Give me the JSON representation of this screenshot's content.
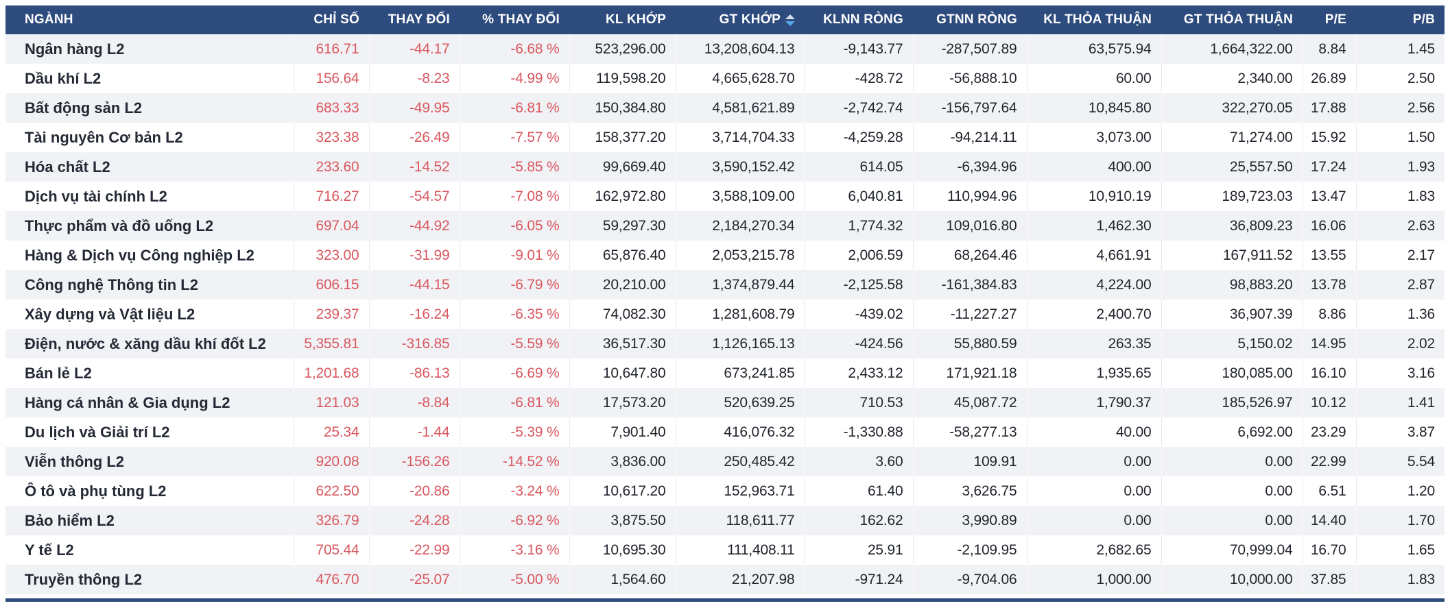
{
  "colors": {
    "header_bg": "#2e4b7e",
    "header_text": "#ffffff",
    "row_stripe": "#f1f2f5",
    "negative_text": "#d9575f",
    "body_text": "#1f232b",
    "sort_arrow_active": "#58a6e8",
    "sort_arrow_inactive": "#d4ddeb"
  },
  "sort": {
    "column_key": "gt-khop",
    "direction": "desc"
  },
  "table": {
    "columns": [
      {
        "key": "nganh",
        "label": "NGÀNH",
        "align": "left",
        "negative_color": false
      },
      {
        "key": "chi-so",
        "label": "CHỈ SỐ",
        "align": "right",
        "negative_color": true
      },
      {
        "key": "thay-doi",
        "label": "THAY ĐỔI",
        "align": "right",
        "negative_color": true
      },
      {
        "key": "pct-thay-doi",
        "label": "% THAY ĐỔI",
        "align": "right",
        "negative_color": true
      },
      {
        "key": "kl-khop",
        "label": "KL KHỚP",
        "align": "right",
        "negative_color": false
      },
      {
        "key": "gt-khop",
        "label": "GT KHỚP",
        "align": "right",
        "negative_color": false,
        "sorted": true
      },
      {
        "key": "klnn-rong",
        "label": "KLNN RÒNG",
        "align": "right",
        "negative_color": false
      },
      {
        "key": "gtnn-rong",
        "label": "GTNN RÒNG",
        "align": "right",
        "negative_color": false
      },
      {
        "key": "kl-thoa-thuan",
        "label": "KL THỎA THUẬN",
        "align": "right",
        "negative_color": false
      },
      {
        "key": "gt-thoa-thuan",
        "label": "GT THỎA THUẬN",
        "align": "right",
        "negative_color": false
      },
      {
        "key": "pe",
        "label": "P/E",
        "align": "right",
        "negative_color": false
      },
      {
        "key": "pb",
        "label": "P/B",
        "align": "right",
        "negative_color": false
      }
    ],
    "rows": [
      [
        "Ngân hàng L2",
        "616.71",
        "-44.17",
        "-6.68 %",
        "523,296.00",
        "13,208,604.13",
        "-9,143.77",
        "-287,507.89",
        "63,575.94",
        "1,664,322.00",
        "8.84",
        "1.45"
      ],
      [
        "Dầu khí L2",
        "156.64",
        "-8.23",
        "-4.99 %",
        "119,598.20",
        "4,665,628.70",
        "-428.72",
        "-56,888.10",
        "60.00",
        "2,340.00",
        "26.89",
        "2.50"
      ],
      [
        "Bất động sản L2",
        "683.33",
        "-49.95",
        "-6.81 %",
        "150,384.80",
        "4,581,621.89",
        "-2,742.74",
        "-156,797.64",
        "10,845.80",
        "322,270.05",
        "17.88",
        "2.56"
      ],
      [
        "Tài nguyên Cơ bản L2",
        "323.38",
        "-26.49",
        "-7.57 %",
        "158,377.20",
        "3,714,704.33",
        "-4,259.28",
        "-94,214.11",
        "3,073.00",
        "71,274.00",
        "15.92",
        "1.50"
      ],
      [
        "Hóa chất L2",
        "233.60",
        "-14.52",
        "-5.85 %",
        "99,669.40",
        "3,590,152.42",
        "614.05",
        "-6,394.96",
        "400.00",
        "25,557.50",
        "17.24",
        "1.93"
      ],
      [
        "Dịch vụ tài chính L2",
        "716.27",
        "-54.57",
        "-7.08 %",
        "162,972.80",
        "3,588,109.00",
        "6,040.81",
        "110,994.96",
        "10,910.19",
        "189,723.03",
        "13.47",
        "1.83"
      ],
      [
        "Thực phẩm và đồ uống L2",
        "697.04",
        "-44.92",
        "-6.05 %",
        "59,297.30",
        "2,184,270.34",
        "1,774.32",
        "109,016.80",
        "1,462.30",
        "36,809.23",
        "16.06",
        "2.63"
      ],
      [
        "Hàng & Dịch vụ Công nghiệp L2",
        "323.00",
        "-31.99",
        "-9.01 %",
        "65,876.40",
        "2,053,215.78",
        "2,006.59",
        "68,264.46",
        "4,661.91",
        "167,911.52",
        "13.55",
        "2.17"
      ],
      [
        "Công nghệ Thông tin L2",
        "606.15",
        "-44.15",
        "-6.79 %",
        "20,210.00",
        "1,374,879.44",
        "-2,125.58",
        "-161,384.83",
        "4,224.00",
        "98,883.20",
        "13.78",
        "2.87"
      ],
      [
        "Xây dựng và Vật liệu L2",
        "239.37",
        "-16.24",
        "-6.35 %",
        "74,082.30",
        "1,281,608.79",
        "-439.02",
        "-11,227.27",
        "2,400.70",
        "36,907.39",
        "8.86",
        "1.36"
      ],
      [
        "Điện, nước & xăng dầu khí đốt L2",
        "5,355.81",
        "-316.85",
        "-5.59 %",
        "36,517.30",
        "1,126,165.13",
        "-424.56",
        "55,880.59",
        "263.35",
        "5,150.02",
        "14.95",
        "2.02"
      ],
      [
        "Bán lẻ L2",
        "1,201.68",
        "-86.13",
        "-6.69 %",
        "10,647.80",
        "673,241.85",
        "2,433.12",
        "171,921.18",
        "1,935.65",
        "180,085.00",
        "16.10",
        "3.16"
      ],
      [
        "Hàng cá nhân & Gia dụng L2",
        "121.03",
        "-8.84",
        "-6.81 %",
        "17,573.20",
        "520,639.25",
        "710.53",
        "45,087.72",
        "1,790.37",
        "185,526.97",
        "10.12",
        "1.41"
      ],
      [
        "Du lịch và Giải trí L2",
        "25.34",
        "-1.44",
        "-5.39 %",
        "7,901.40",
        "416,076.32",
        "-1,330.88",
        "-58,277.13",
        "40.00",
        "6,692.00",
        "23.29",
        "3.87"
      ],
      [
        "Viễn thông L2",
        "920.08",
        "-156.26",
        "-14.52 %",
        "3,836.00",
        "250,485.42",
        "3.60",
        "109.91",
        "0.00",
        "0.00",
        "22.99",
        "5.54"
      ],
      [
        "Ô tô và phụ tùng L2",
        "622.50",
        "-20.86",
        "-3.24 %",
        "10,617.20",
        "152,963.71",
        "61.40",
        "3,626.75",
        "0.00",
        "0.00",
        "6.51",
        "1.20"
      ],
      [
        "Bảo hiểm L2",
        "326.79",
        "-24.28",
        "-6.92 %",
        "3,875.50",
        "118,611.77",
        "162.62",
        "3,990.89",
        "0.00",
        "0.00",
        "14.40",
        "1.70"
      ],
      [
        "Y tế L2",
        "705.44",
        "-22.99",
        "-3.16 %",
        "10,695.30",
        "111,408.11",
        "25.91",
        "-2,109.95",
        "2,682.65",
        "70,999.04",
        "16.70",
        "1.65"
      ],
      [
        "Truyền thông L2",
        "476.70",
        "-25.07",
        "-5.00 %",
        "1,564.60",
        "21,207.98",
        "-971.24",
        "-9,704.06",
        "1,000.00",
        "10,000.00",
        "37.85",
        "1.83"
      ]
    ]
  }
}
